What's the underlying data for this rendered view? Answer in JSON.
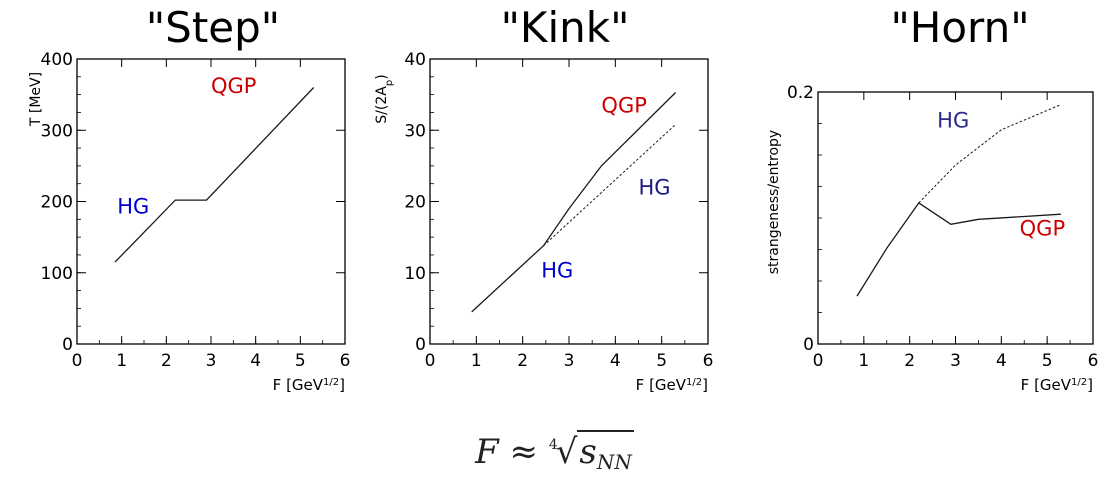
{
  "chart_data": [
    {
      "type": "line",
      "title": "\"Step\"",
      "xlabel": "F [GeV1/2]",
      "ylabel": "T [MeV]",
      "xlim": [
        0,
        6
      ],
      "ylim": [
        0,
        400
      ],
      "xticks": [
        "0",
        "1",
        "2",
        "3",
        "4",
        "5",
        "6"
      ],
      "yticks": [
        "0",
        "100",
        "200",
        "300",
        "400"
      ],
      "series": [
        {
          "style": "solid",
          "x": [
            0.85,
            2.2,
            2.9,
            5.3
          ],
          "y": [
            115,
            202,
            202,
            360
          ]
        }
      ],
      "annotations": [
        {
          "text": "QGP",
          "color": "#cc0000",
          "x": 3.0,
          "y": 352
        },
        {
          "text": "HG",
          "color": "#0000cc",
          "x": 0.9,
          "y": 183
        }
      ]
    },
    {
      "type": "line",
      "title": "\"Kink\"",
      "xlabel": "F [GeV1/2]",
      "ylabel": "S/(2Ap)",
      "xlim": [
        0,
        6
      ],
      "ylim": [
        0,
        40
      ],
      "xticks": [
        "0",
        "1",
        "2",
        "3",
        "4",
        "5",
        "6"
      ],
      "yticks": [
        "0",
        "10",
        "20",
        "30",
        "40"
      ],
      "series": [
        {
          "style": "solid",
          "x": [
            0.9,
            2.45,
            3.0,
            3.7,
            5.3
          ],
          "y": [
            4.5,
            13.8,
            19.0,
            25.0,
            35.3
          ]
        },
        {
          "style": "dashed",
          "x": [
            2.45,
            5.3
          ],
          "y": [
            13.8,
            30.8
          ]
        }
      ],
      "annotations": [
        {
          "text": "QGP",
          "color": "#cc0000",
          "x": 3.7,
          "y": 32.5
        },
        {
          "text": "HG",
          "color": "#1a1a80",
          "x": 4.5,
          "y": 21.0
        },
        {
          "text": "HG",
          "color": "#0000cc",
          "x": 2.4,
          "y": 9.3
        }
      ]
    },
    {
      "type": "line",
      "title": "\"Horn\"",
      "xlabel": "F [GeV1/2]",
      "ylabel": "strangeness/entropy",
      "xlim": [
        0,
        6
      ],
      "ylim": [
        0,
        0.2
      ],
      "xticks": [
        "0",
        "1",
        "2",
        "3",
        "4",
        "5",
        "6"
      ],
      "yticks": [
        "0",
        "0.2"
      ],
      "series": [
        {
          "style": "solid",
          "x": [
            0.85,
            1.5,
            2.2,
            2.9,
            3.5,
            5.3
          ],
          "y": [
            0.038,
            0.076,
            0.112,
            0.095,
            0.099,
            0.103
          ]
        },
        {
          "style": "dashed",
          "x": [
            2.2,
            3.0,
            4.0,
            5.3
          ],
          "y": [
            0.112,
            0.142,
            0.17,
            0.19
          ]
        }
      ],
      "annotations": [
        {
          "text": "HG",
          "color": "#2a2a8a",
          "x": 2.6,
          "y": 0.172
        },
        {
          "text": "QGP",
          "color": "#cc0000",
          "x": 4.4,
          "y": 0.086
        }
      ]
    }
  ],
  "formula": {
    "lhs": "F",
    "approx": "≈",
    "root_index": "4",
    "radicand": "s",
    "radicand_sub": "NN"
  },
  "colors": {
    "axis": "#000000",
    "curve": "#1a1a1a"
  }
}
